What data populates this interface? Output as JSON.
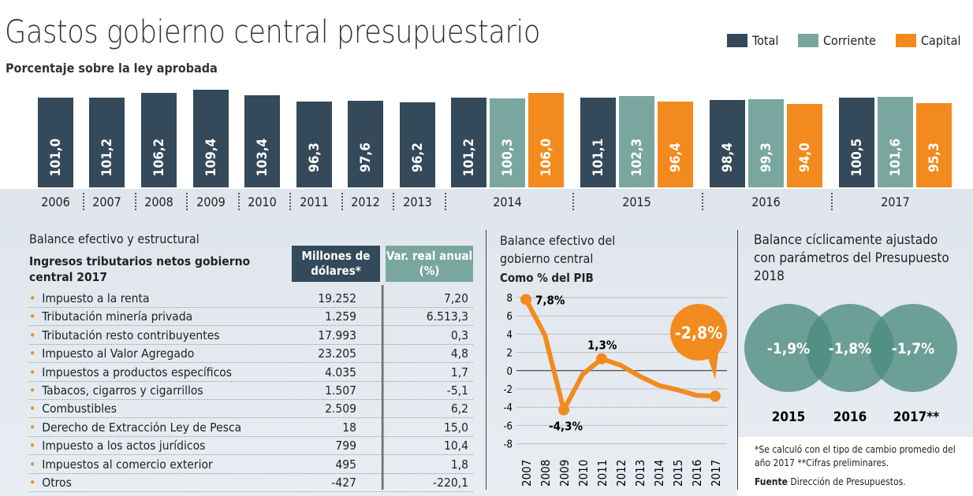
{
  "title": "Gastos gobierno central presupuestario",
  "subtitle": "Porcentaje sobre la ley aprobada",
  "colors": {
    "total": "#34495a",
    "corriente": "#7aa6a0",
    "capital": "#f28a1e",
    "circle": "#4e8c80"
  },
  "chart_data": [
    {
      "type": "bar",
      "title": "Gastos gobierno central presupuestario",
      "subtitle": "Porcentaje sobre la ley aprobada",
      "legend_position": "top-right",
      "series_names": [
        "Total",
        "Corriente",
        "Capital"
      ],
      "groups": [
        {
          "year": "2006",
          "values": [
            101.0
          ],
          "labels": [
            "101,0"
          ]
        },
        {
          "year": "2007",
          "values": [
            101.2
          ],
          "labels": [
            "101,2"
          ]
        },
        {
          "year": "2008",
          "values": [
            106.2
          ],
          "labels": [
            "106,2"
          ]
        },
        {
          "year": "2009",
          "values": [
            109.4
          ],
          "labels": [
            "109,4"
          ]
        },
        {
          "year": "2010",
          "values": [
            103.4
          ],
          "labels": [
            "103,4"
          ]
        },
        {
          "year": "2011",
          "values": [
            96.3
          ],
          "labels": [
            "96,3"
          ]
        },
        {
          "year": "2012",
          "values": [
            97.6
          ],
          "labels": [
            "97,6"
          ]
        },
        {
          "year": "2013",
          "values": [
            96.2
          ],
          "labels": [
            "96,2"
          ]
        },
        {
          "year": "2014",
          "values": [
            101.2,
            100.3,
            106.0
          ],
          "labels": [
            "101,2",
            "100,3",
            "106,0"
          ]
        },
        {
          "year": "2015",
          "values": [
            101.1,
            102.3,
            96.4
          ],
          "labels": [
            "101,1",
            "102,3",
            "96,4"
          ]
        },
        {
          "year": "2016",
          "values": [
            98.4,
            99.3,
            94.0
          ],
          "labels": [
            "98,4",
            "99,3",
            "94,0"
          ]
        },
        {
          "year": "2017",
          "values": [
            100.5,
            101.6,
            95.3
          ],
          "labels": [
            "100,5",
            "101,6",
            "95,3"
          ]
        }
      ]
    },
    {
      "type": "line",
      "title": "Balance efectivo del gobierno central",
      "subtitle": "Como % del PIB",
      "ylim": [
        -8,
        8
      ],
      "yticks": [
        "8",
        "6",
        "4",
        "2",
        "0",
        "-2",
        "-4",
        "-6",
        "-8"
      ],
      "grid": true,
      "x": [
        "2007",
        "2008",
        "2009",
        "2010",
        "2011",
        "2012",
        "2013",
        "2014",
        "2015",
        "2016",
        "2017"
      ],
      "y": [
        7.8,
        3.9,
        -4.3,
        -0.4,
        1.3,
        0.6,
        -0.6,
        -1.6,
        -2.1,
        -2.7,
        -2.8
      ],
      "annotations": {
        "first": "7,8%",
        "min": "-4,3%",
        "peak": "1,3%",
        "last": "-2,8%"
      }
    },
    {
      "type": "venn",
      "title": "Balance cíclicamente ajustado con parámetros del Presupuesto 2018",
      "categories": [
        "2015",
        "2016",
        "2017**"
      ],
      "values": [
        -1.9,
        -1.8,
        -1.7
      ],
      "labels": [
        "-1,9%",
        "-1,8%",
        "-1,7%"
      ]
    }
  ],
  "table": {
    "section": "Balance efectivo y estructural",
    "title": "Ingresos tributarios netos gobierno central 2017",
    "col1": "Millones de dólares*",
    "col2": "Var. real anual (%)",
    "rows": [
      [
        "Impuesto a la renta",
        "19.252",
        "7,20"
      ],
      [
        "Tributación minería privada",
        "1.259",
        "6.513,3"
      ],
      [
        "Tributación resto contribuyentes",
        "17.993",
        "0,3"
      ],
      [
        "Impuesto al Valor Agregado",
        "23.205",
        "4,8"
      ],
      [
        "Impuestos a productos específicos",
        "4.035",
        "1,7"
      ],
      [
        "Tabacos, cigarros y cigarrillos",
        "1.507",
        "-5,1"
      ],
      [
        "Combustibles",
        "2.509",
        "6,2"
      ],
      [
        "Derecho de Extracción Ley de Pesca",
        "18",
        "15,0"
      ],
      [
        "Impuesto a los actos jurídicos",
        "799",
        "10,4"
      ],
      [
        "Impuestos al comercio exterior",
        "495",
        "1,8"
      ],
      [
        "Otros",
        "-427",
        "-220,1"
      ]
    ]
  },
  "footnote": "*Se calculó con el tipo de cambio promedio del año 2017 **Cifras preliminares.",
  "source_label": "Fuente",
  "source": "Dirección de Presupuestos."
}
